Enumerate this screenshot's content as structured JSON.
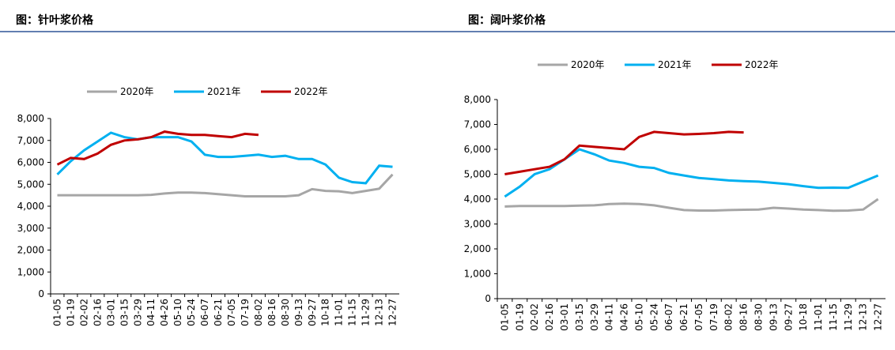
{
  "chart_data": [
    {
      "type": "line",
      "title": "图：针叶浆价格",
      "categories": [
        "01-05",
        "01-19",
        "02-02",
        "02-16",
        "03-01",
        "03-15",
        "03-29",
        "04-11",
        "04-26",
        "05-10",
        "05-24",
        "06-07",
        "06-21",
        "07-05",
        "07-19",
        "08-02",
        "08-16",
        "08-30",
        "09-13",
        "09-27",
        "10-18",
        "11-01",
        "11-15",
        "11-29",
        "12-13",
        "12-27"
      ],
      "series": [
        {
          "name": "2020年",
          "color": "#a6a6a6",
          "values": [
            4500,
            4500,
            4500,
            4500,
            4500,
            4500,
            4500,
            4520,
            4580,
            4620,
            4620,
            4600,
            4550,
            4500,
            4450,
            4450,
            4450,
            4450,
            4500,
            4780,
            4700,
            4680,
            4600,
            4700,
            4800,
            5450
          ]
        },
        {
          "name": "2021年",
          "color": "#00b0f0",
          "values": [
            5450,
            6050,
            6550,
            6950,
            7350,
            7150,
            7050,
            7150,
            7150,
            7150,
            6950,
            6350,
            6250,
            6250,
            6300,
            6350,
            6250,
            6300,
            6150,
            6150,
            5900,
            5300,
            5100,
            5050,
            5850,
            5800
          ]
        },
        {
          "name": "2022年",
          "color": "#c00000",
          "values": [
            5900,
            6200,
            6150,
            6400,
            6800,
            7000,
            7050,
            7150,
            7400,
            7300,
            7250,
            7250,
            7200,
            7150,
            7300,
            7250,
            null,
            null,
            null,
            null,
            null,
            null,
            null,
            null,
            null,
            null
          ]
        }
      ],
      "ylim": [
        0,
        8000
      ],
      "yticks": [
        0,
        {
          "value": 1000,
          "label": "1,000"
        },
        {
          "value": 2000,
          "label": "2,000"
        },
        {
          "value": 3000,
          "label": "3,000"
        },
        {
          "value": 4000,
          "label": "4,000"
        },
        {
          "value": 5000,
          "label": "5,000"
        },
        {
          "value": 6000,
          "label": "6,000"
        },
        {
          "value": 7000,
          "label": "7,000"
        },
        {
          "value": 8000,
          "label": "8,000"
        }
      ],
      "grid": false,
      "legend": "top"
    },
    {
      "type": "line",
      "title": "图：阔叶浆价格",
      "categories": [
        "01-05",
        "01-19",
        "02-02",
        "02-16",
        "03-01",
        "03-15",
        "03-29",
        "04-11",
        "04-26",
        "05-10",
        "05-24",
        "06-07",
        "06-21",
        "07-05",
        "07-19",
        "08-02",
        "08-16",
        "08-30",
        "09-13",
        "09-27",
        "10-18",
        "11-01",
        "11-15",
        "11-29",
        "12-13",
        "12-27"
      ],
      "series": [
        {
          "name": "2020年",
          "color": "#a6a6a6",
          "values": [
            3700,
            3720,
            3720,
            3720,
            3720,
            3740,
            3750,
            3800,
            3820,
            3800,
            3750,
            3650,
            3560,
            3540,
            3540,
            3560,
            3570,
            3580,
            3650,
            3620,
            3580,
            3560,
            3530,
            3540,
            3580,
            4000
          ]
        },
        {
          "name": "2021年",
          "color": "#00b0f0",
          "values": [
            4100,
            4500,
            5000,
            5200,
            5600,
            6000,
            5800,
            5550,
            5450,
            5300,
            5250,
            5050,
            4950,
            4850,
            4800,
            4750,
            4720,
            4700,
            4650,
            4600,
            4520,
            4450,
            4460,
            4450,
            4700,
            4950
          ]
        },
        {
          "name": "2022年",
          "color": "#c00000",
          "values": [
            5000,
            5100,
            5200,
            5300,
            5600,
            6150,
            6100,
            6050,
            6000,
            6500,
            6700,
            6650,
            6600,
            6620,
            6650,
            6700,
            6680,
            null,
            null,
            null,
            null,
            null,
            null,
            null,
            null,
            null
          ]
        }
      ],
      "ylim": [
        0,
        8000
      ],
      "yticks": [
        0,
        {
          "value": 1000,
          "label": "1,000"
        },
        {
          "value": 2000,
          "label": "2,000"
        },
        {
          "value": 3000,
          "label": "3,000"
        },
        {
          "value": 4000,
          "label": "4,000"
        },
        {
          "value": 5000,
          "label": "5,000"
        },
        {
          "value": 6000,
          "label": "6,000"
        },
        {
          "value": 7000,
          "label": "7,000"
        },
        {
          "value": 8000,
          "label": "8,000"
        }
      ],
      "grid": false,
      "legend": "top"
    }
  ]
}
